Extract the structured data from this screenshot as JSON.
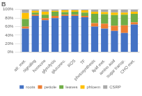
{
  "chart_data": {
    "type": "bar",
    "title": "B",
    "categories": [
      "atr. met.",
      "signaling",
      "hormone",
      "glycolysis",
      "gluconeo.",
      "ROS",
      "TF",
      "photosynthesis",
      "lipid met.",
      "amino acid",
      "sugar transp.",
      "CHO met."
    ],
    "series": [
      {
        "name": "roots",
        "color": "#4472C4",
        "values": [
          55,
          85,
          75,
          80,
          85,
          85,
          82,
          60,
          55,
          50,
          45,
          65
        ]
      },
      {
        "name": "petiole",
        "color": "#ED7D31",
        "values": [
          5,
          3,
          5,
          5,
          3,
          3,
          3,
          8,
          12,
          12,
          18,
          5
        ]
      },
      {
        "name": "leaves",
        "color": "#70AD47",
        "values": [
          18,
          5,
          8,
          10,
          6,
          7,
          8,
          22,
          22,
          25,
          25,
          20
        ]
      },
      {
        "name": "phloem",
        "color": "#FFC000",
        "values": [
          14,
          4,
          7,
          2,
          4,
          3,
          5,
          5,
          5,
          6,
          5,
          5
        ]
      },
      {
        "name": "CSRP",
        "color": "#A9A9A9",
        "values": [
          8,
          3,
          5,
          3,
          2,
          2,
          2,
          5,
          6,
          7,
          7,
          5
        ]
      }
    ],
    "stacked": true,
    "ylim": [
      0,
      100
    ],
    "yticks": [
      {
        "value": 0,
        "label": "0%"
      },
      {
        "value": 20,
        "label": "20%"
      },
      {
        "value": 40,
        "label": "40%"
      },
      {
        "value": 60,
        "label": "60%"
      },
      {
        "value": 80,
        "label": "80%"
      },
      {
        "value": 100,
        "label": "100%"
      }
    ],
    "grid": true,
    "legend": "bottom"
  }
}
